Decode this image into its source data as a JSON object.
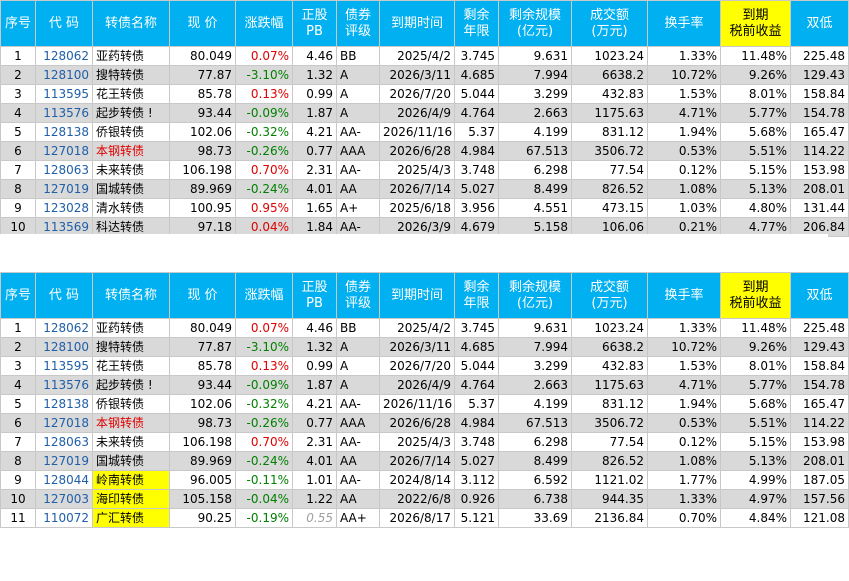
{
  "headers": [
    "序号",
    "代 码",
    "转债名称",
    "现 价",
    "涨跌幅",
    "正股\nPB",
    "债券\n评级",
    "到期时间",
    "剩余\n年限",
    "剩余规模\n(亿元)",
    "成交额\n(万元)",
    "换手率",
    "到期\n税前收益",
    "双低"
  ],
  "colors": {
    "header": "#00b0f0",
    "ytm_header": "#ffff00",
    "alt_row": "#d9d9d9",
    "up": "#e00000",
    "down": "#008000",
    "code": "#1f5fa8"
  },
  "table1": [
    {
      "n": "1",
      "code": "128062",
      "name": "亚药转债",
      "price": "80.049",
      "chg": "0.07%",
      "pb": "4.46",
      "rating": "BB",
      "due": "2025/4/2",
      "years": "3.745",
      "size": "9.631",
      "amt": "1023.24",
      "turn": "1.33%",
      "ytm": "11.48%",
      "dl": "225.48"
    },
    {
      "n": "2",
      "code": "128100",
      "name": "搜特转债",
      "price": "77.87",
      "chg": "-3.10%",
      "pb": "1.32",
      "rating": "A",
      "due": "2026/3/11",
      "years": "4.685",
      "size": "7.994",
      "amt": "6638.2",
      "turn": "10.72%",
      "ytm": "9.26%",
      "dl": "129.43"
    },
    {
      "n": "3",
      "code": "113595",
      "name": "花王转债",
      "price": "85.78",
      "chg": "0.13%",
      "pb": "0.99",
      "rating": "A",
      "due": "2026/7/20",
      "years": "5.044",
      "size": "3.299",
      "amt": "432.83",
      "turn": "1.53%",
      "ytm": "8.01%",
      "dl": "158.84"
    },
    {
      "n": "4",
      "code": "113576",
      "name": "起步转债 !",
      "price": "93.44",
      "chg": "-0.09%",
      "pb": "1.87",
      "rating": "A",
      "due": "2026/4/9",
      "years": "4.764",
      "size": "2.663",
      "amt": "1175.63",
      "turn": "4.71%",
      "ytm": "5.77%",
      "dl": "154.78"
    },
    {
      "n": "5",
      "code": "128138",
      "name": "侨银转债",
      "price": "102.06",
      "chg": "-0.32%",
      "pb": "4.21",
      "rating": "AA-",
      "due": "2026/11/16",
      "years": "5.37",
      "size": "4.199",
      "amt": "831.12",
      "turn": "1.94%",
      "ytm": "5.68%",
      "dl": "165.47"
    },
    {
      "n": "6",
      "code": "127018",
      "name": "本钢转债",
      "price": "98.73",
      "chg": "-0.26%",
      "pb": "0.77",
      "rating": "AAA",
      "due": "2026/6/28",
      "years": "4.984",
      "size": "67.513",
      "amt": "3506.72",
      "turn": "0.53%",
      "ytm": "5.51%",
      "dl": "114.22",
      "red": true
    },
    {
      "n": "7",
      "code": "128063",
      "name": "未来转债",
      "price": "106.198",
      "chg": "0.70%",
      "pb": "2.31",
      "rating": "AA-",
      "due": "2025/4/3",
      "years": "3.748",
      "size": "6.298",
      "amt": "77.54",
      "turn": "0.12%",
      "ytm": "5.15%",
      "dl": "153.98"
    },
    {
      "n": "8",
      "code": "127019",
      "name": "国城转债",
      "price": "89.969",
      "chg": "-0.24%",
      "pb": "4.01",
      "rating": "AA",
      "due": "2026/7/14",
      "years": "5.027",
      "size": "8.499",
      "amt": "826.52",
      "turn": "1.08%",
      "ytm": "5.13%",
      "dl": "208.01"
    },
    {
      "n": "9",
      "code": "123028",
      "name": "清水转债",
      "price": "100.95",
      "chg": "0.95%",
      "pb": "1.65",
      "rating": "A+",
      "due": "2025/6/18",
      "years": "3.956",
      "size": "4.551",
      "amt": "473.15",
      "turn": "1.03%",
      "ytm": "4.80%",
      "dl": "131.44"
    },
    {
      "n": "10",
      "code": "113569",
      "name": "科达转债",
      "price": "97.18",
      "chg": "0.04%",
      "pb": "1.84",
      "rating": "AA-",
      "due": "2026/3/9",
      "years": "4.679",
      "size": "5.158",
      "amt": "106.06",
      "turn": "0.21%",
      "ytm": "4.77%",
      "dl": "206.84"
    }
  ],
  "table2": [
    {
      "n": "1",
      "code": "128062",
      "name": "亚药转债",
      "price": "80.049",
      "chg": "0.07%",
      "pb": "4.46",
      "rating": "BB",
      "due": "2025/4/2",
      "years": "3.745",
      "size": "9.631",
      "amt": "1023.24",
      "turn": "1.33%",
      "ytm": "11.48%",
      "dl": "225.48"
    },
    {
      "n": "2",
      "code": "128100",
      "name": "搜特转债",
      "price": "77.87",
      "chg": "-3.10%",
      "pb": "1.32",
      "rating": "A",
      "due": "2026/3/11",
      "years": "4.685",
      "size": "7.994",
      "amt": "6638.2",
      "turn": "10.72%",
      "ytm": "9.26%",
      "dl": "129.43"
    },
    {
      "n": "3",
      "code": "113595",
      "name": "花王转债",
      "price": "85.78",
      "chg": "0.13%",
      "pb": "0.99",
      "rating": "A",
      "due": "2026/7/20",
      "years": "5.044",
      "size": "3.299",
      "amt": "432.83",
      "turn": "1.53%",
      "ytm": "8.01%",
      "dl": "158.84"
    },
    {
      "n": "4",
      "code": "113576",
      "name": "起步转债 !",
      "price": "93.44",
      "chg": "-0.09%",
      "pb": "1.87",
      "rating": "A",
      "due": "2026/4/9",
      "years": "4.764",
      "size": "2.663",
      "amt": "1175.63",
      "turn": "4.71%",
      "ytm": "5.77%",
      "dl": "154.78"
    },
    {
      "n": "5",
      "code": "128138",
      "name": "侨银转债",
      "price": "102.06",
      "chg": "-0.32%",
      "pb": "4.21",
      "rating": "AA-",
      "due": "2026/11/16",
      "years": "5.37",
      "size": "4.199",
      "amt": "831.12",
      "turn": "1.94%",
      "ytm": "5.68%",
      "dl": "165.47"
    },
    {
      "n": "6",
      "code": "127018",
      "name": "本钢转债",
      "price": "98.73",
      "chg": "-0.26%",
      "pb": "0.77",
      "rating": "AAA",
      "due": "2026/6/28",
      "years": "4.984",
      "size": "67.513",
      "amt": "3506.72",
      "turn": "0.53%",
      "ytm": "5.51%",
      "dl": "114.22",
      "red": true
    },
    {
      "n": "7",
      "code": "128063",
      "name": "未来转债",
      "price": "106.198",
      "chg": "0.70%",
      "pb": "2.31",
      "rating": "AA-",
      "due": "2025/4/3",
      "years": "3.748",
      "size": "6.298",
      "amt": "77.54",
      "turn": "0.12%",
      "ytm": "5.15%",
      "dl": "153.98"
    },
    {
      "n": "8",
      "code": "127019",
      "name": "国城转债",
      "price": "89.969",
      "chg": "-0.24%",
      "pb": "4.01",
      "rating": "AA",
      "due": "2026/7/14",
      "years": "5.027",
      "size": "8.499",
      "amt": "826.52",
      "turn": "1.08%",
      "ytm": "5.13%",
      "dl": "208.01"
    },
    {
      "n": "9",
      "code": "128044",
      "name": "岭南转债",
      "price": "96.005",
      "chg": "-0.11%",
      "pb": "1.01",
      "rating": "AA-",
      "due": "2024/8/14",
      "years": "3.112",
      "size": "6.592",
      "amt": "1121.02",
      "turn": "1.77%",
      "ytm": "4.99%",
      "dl": "187.05",
      "hl": true
    },
    {
      "n": "10",
      "code": "127003",
      "name": "海印转债",
      "price": "105.158",
      "chg": "-0.04%",
      "pb": "1.22",
      "rating": "AA",
      "due": "2022/6/8",
      "years": "0.926",
      "size": "6.738",
      "amt": "944.35",
      "turn": "1.33%",
      "ytm": "4.97%",
      "dl": "157.56",
      "hl": true
    },
    {
      "n": "11",
      "code": "110072",
      "name": "广汇转债",
      "price": "90.25",
      "chg": "-0.19%",
      "pb": "0.55",
      "rating": "AA+",
      "due": "2026/8/17",
      "years": "5.121",
      "size": "33.69",
      "amt": "2136.84",
      "turn": "0.70%",
      "ytm": "4.84%",
      "dl": "121.08",
      "hl": true,
      "pbMuted": true
    }
  ]
}
